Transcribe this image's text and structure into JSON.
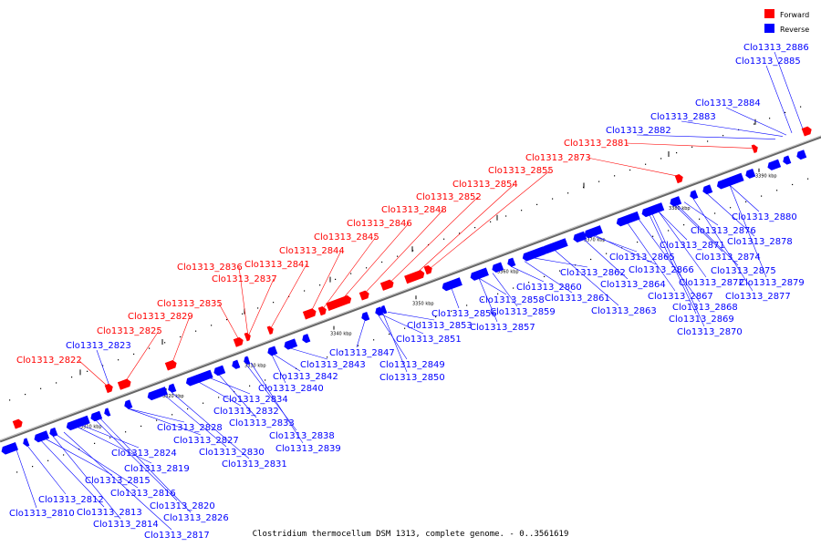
{
  "caption": "Clostridium thermocellum DSM 1313, complete genome. - 0..3561619",
  "legend": [
    {
      "label": "Forward",
      "color": "#ff0000"
    },
    {
      "label": "Reverse",
      "color": "#0000ff"
    }
  ],
  "colors": {
    "forward": "#ff0000",
    "reverse": "#0000ff",
    "axis": "#888888"
  },
  "ticks": [
    "3310 kbp",
    "3320 kbp",
    "3330 kbp",
    "3340 kbp",
    "3350 kbp",
    "3360 kbp",
    "3370 kbp",
    "3380 kbp",
    "3390 kbp"
  ],
  "forward_labels": [
    "Clo1313_2822",
    "Clo1313_2825",
    "Clo1313_2829",
    "Clo1313_2835",
    "Clo1313_2836",
    "Clo1313_2837",
    "Clo1313_2841",
    "Clo1313_2844",
    "Clo1313_2845",
    "Clo1313_2846",
    "Clo1313_2848",
    "Clo1313_2852",
    "Clo1313_2854",
    "Clo1313_2855",
    "Clo1313_2873",
    "Clo1313_2881"
  ],
  "reverse_labels": [
    "Clo1313_2823",
    "Clo1313_2882",
    "Clo1313_2883",
    "Clo1313_2884",
    "Clo1313_2885",
    "Clo1313_2886",
    "Clo1313_2810",
    "Clo1313_2812",
    "Clo1313_2813",
    "Clo1313_2814",
    "Clo1313_2815",
    "Clo1313_2816",
    "Clo1313_2817",
    "Clo1313_2819",
    "Clo1313_2820",
    "Clo1313_2824",
    "Clo1313_2826",
    "Clo1313_2827",
    "Clo1313_2828",
    "Clo1313_2830",
    "Clo1313_2831",
    "Clo1313_2832",
    "Clo1313_2833",
    "Clo1313_2834",
    "Clo1313_2838",
    "Clo1313_2839",
    "Clo1313_2840",
    "Clo1313_2842",
    "Clo1313_2843",
    "Clo1313_2847",
    "Clo1313_2849",
    "Clo1313_2850",
    "Clo1313_2851",
    "Clo1313_2853",
    "Clo1313_2856",
    "Clo1313_2857",
    "Clo1313_2858",
    "Clo1313_2859",
    "Clo1313_2860",
    "Clo1313_2861",
    "Clo1313_2862",
    "Clo1313_2863",
    "Clo1313_2864",
    "Clo1313_2865",
    "Clo1313_2866",
    "Clo1313_2867",
    "Clo1313_2868",
    "Clo1313_2869",
    "Clo1313_2870",
    "Clo1313_2871",
    "Clo1313_2872",
    "Clo1313_2874",
    "Clo1313_2875",
    "Clo1313_2876",
    "Clo1313_2877",
    "Clo1313_2878",
    "Clo1313_2879",
    "Clo1313_2880"
  ]
}
